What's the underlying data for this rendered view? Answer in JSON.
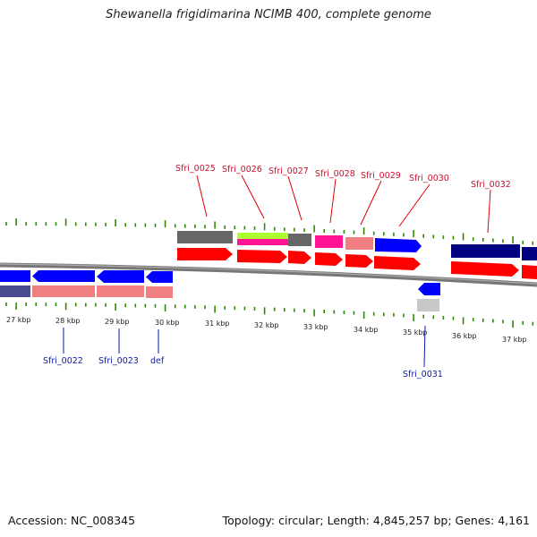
{
  "title": "Shewanella frigidimarina NCIMB 400, complete genome",
  "footer": {
    "accession": "Accession: NC_008345",
    "summary": "Topology: circular; Length: 4,845,257 bp; Genes: 4,161"
  },
  "colors": {
    "red": "#ff0000",
    "blue": "#0000ff",
    "navy": "#000080",
    "gray": "#666666",
    "salmon": "#f08080",
    "magenta": "#ff1493",
    "lime": "#adff2f",
    "light_gray": "#c0c0c0",
    "tick_green": "#2e8b00",
    "label_red": "#c8102e",
    "label_blue": "#0a1aa8"
  },
  "scale_labels": [
    "27 kbp",
    "28 kbp",
    "29 kbp",
    "30 kbp",
    "31 kbp",
    "32 kbp",
    "33 kbp",
    "34 kbp",
    "35 kbp",
    "36 kbp",
    "37 kbp"
  ],
  "top_gene_labels": [
    "Sfri_0025",
    "Sfri_0026",
    "Sfri_0027",
    "Sfri_0028",
    "Sfri_0029",
    "Sfri_0030",
    "Sfri_0032"
  ],
  "bottom_gene_labels": [
    "Sfri_0022",
    "Sfri_0023",
    "def",
    "Sfri_0031"
  ]
}
